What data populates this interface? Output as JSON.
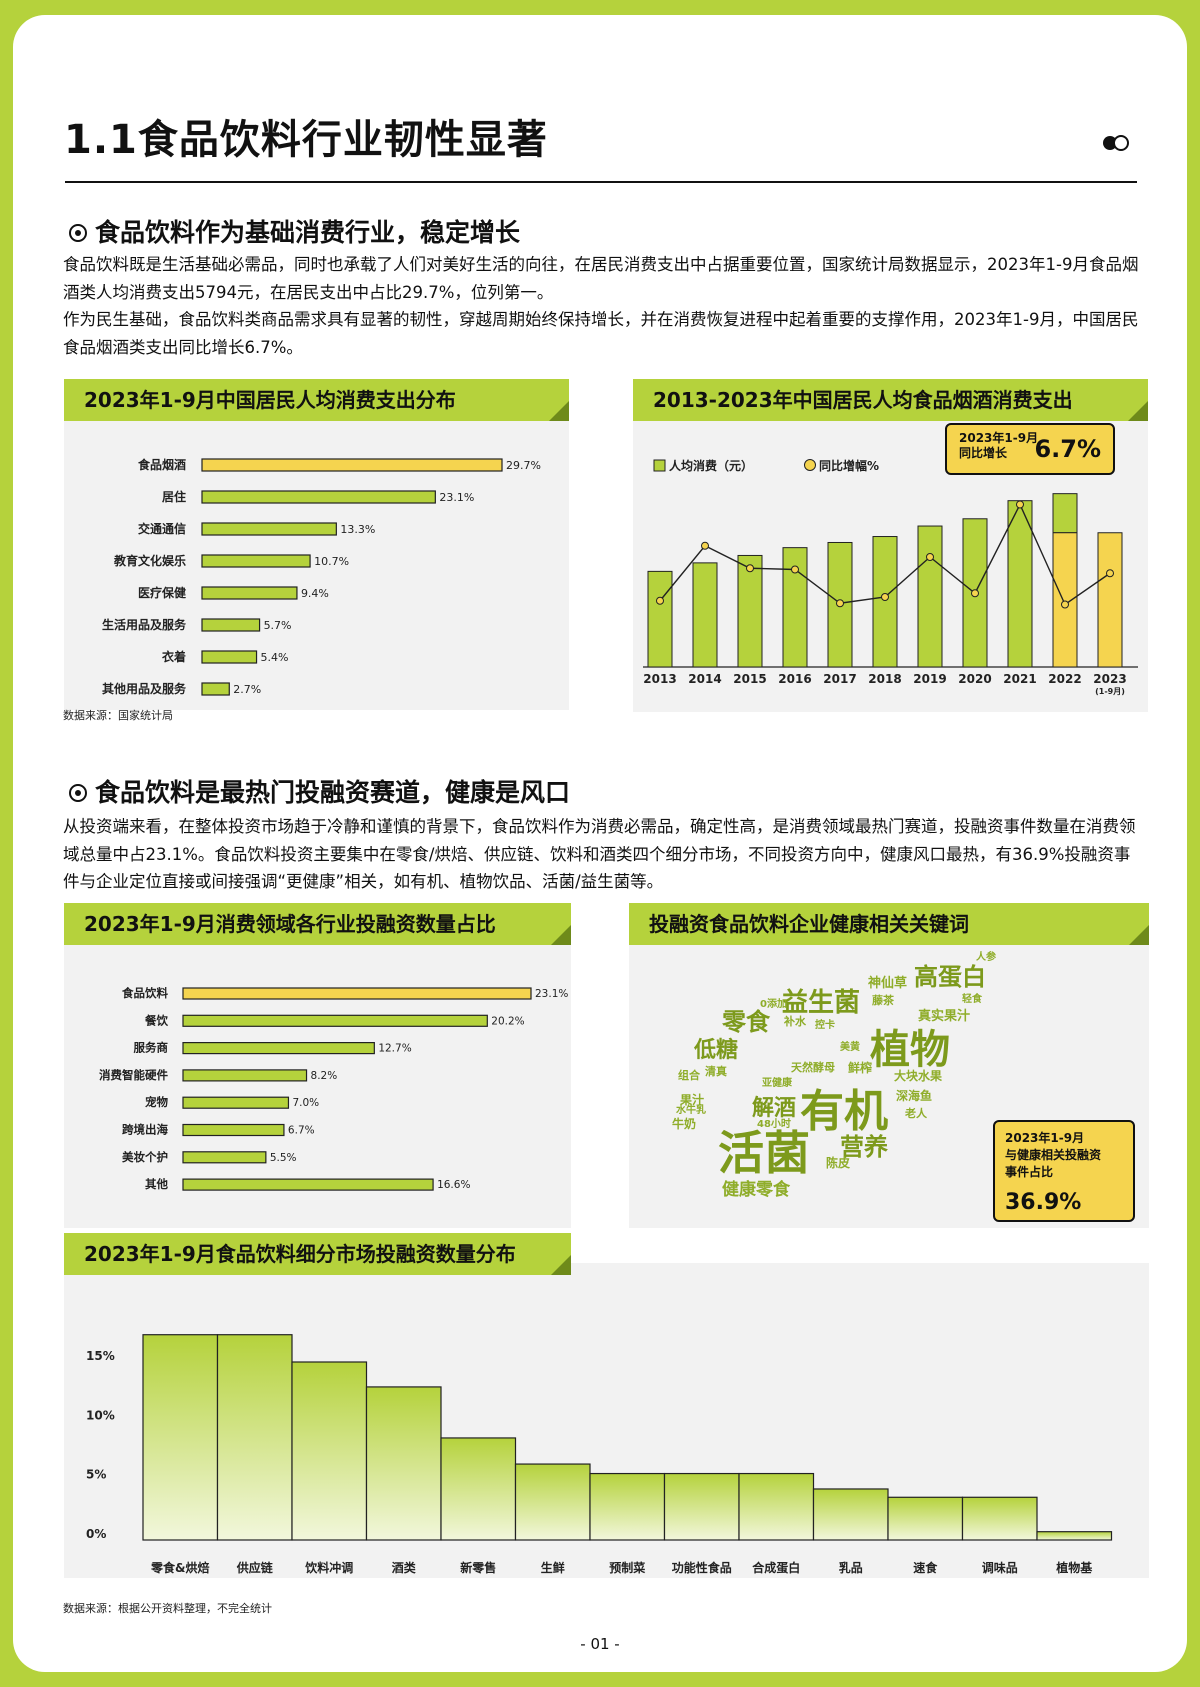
{
  "title": "1.1食品饮料行业韧性显著",
  "section1": {
    "heading": "食品饮料作为基础消费行业，稳定增长",
    "paragraph1": "食品饮料既是生活基础必需品，同时也承载了人们对美好生活的向往，在居民消费支出中占据重要位置，国家统计局数据显示，2023年1-9月食品烟酒类人均消费支出5794元，在居民支出中占比29.7%，位列第一。",
    "paragraph2": "作为民生基础，食品饮料类商品需求具有显著的韧性，穿越周期始终保持增长，并在消费恢复进程中起着重要的支撑作用，2023年1-9月，中国居民食品烟酒类支出同比增长6.7%。"
  },
  "source1": "数据来源：国家统计局",
  "section2": {
    "heading": "食品饮料是最热门投融资赛道，健康是风口",
    "paragraph": "从投资端来看，在整体投资市场趋于冷静和谨慎的背景下，食品饮料作为消费必需品，确定性高，是消费领域最热门赛道，投融资事件数量在消费领域总量中占23.1%。食品饮料投资主要集中在零食/烘焙、供应链、饮料和酒类四个细分市场，不同投资方向中，健康风口最热，有36.9%投融资事件与企业定位直接或间接强调“更健康”相关，如有机、植物饮品、活菌/益生菌等。"
  },
  "keywords": {
    "title": "投融资食品饮料企业健康相关关键词",
    "words": [
      "活菌",
      "有机",
      "植物",
      "益生菌",
      "零食",
      "低糖",
      "高蛋白",
      "营养",
      "解酒",
      "健康零食",
      "鲜榨",
      "天然酵母",
      "大块水果",
      "深海鱼",
      "真实果汁",
      "神仙草",
      "藤茶",
      "补水",
      "0添加",
      "果汁",
      "牛奶",
      "组合",
      "清真",
      "陈皮",
      "人参",
      "轻食",
      "老人",
      "美黄",
      "亚健康",
      "48小时",
      "水牛乳",
      "控卡"
    ],
    "callout": {
      "line1": "2023年1-9月",
      "line2": "与健康相关投融资",
      "line3": "事件占比",
      "value": "36.9%"
    }
  },
  "source2": "数据来源：根据公开资料整理，不完全统计",
  "page_number": "- 01 -",
  "colors": {
    "green": "#b5d23c",
    "yellow": "#f5d44f",
    "dark_green": "#7d9a1c"
  },
  "chart_data": [
    {
      "type": "bar",
      "orientation": "horizontal",
      "title": "2023年1-9月中国居民人均消费支出分布",
      "categories": [
        "食品烟酒",
        "居住",
        "交通通信",
        "教育文化娱乐",
        "医疗保健",
        "生活用品及服务",
        "衣着",
        "其他用品及服务"
      ],
      "values": [
        29.7,
        23.1,
        13.3,
        10.7,
        9.4,
        5.7,
        5.4,
        2.7
      ],
      "value_labels": [
        "29.7%",
        "23.1%",
        "13.3%",
        "10.7%",
        "9.4%",
        "5.7%",
        "5.4%",
        "2.7%"
      ],
      "highlight_index": 0
    },
    {
      "type": "bar",
      "title": "2013-2023年中国居民人均食品烟酒消费支出",
      "categories": [
        "2013",
        "2014",
        "2015",
        "2016",
        "2017",
        "2018",
        "2019",
        "2020",
        "2021",
        "2022",
        "2023"
      ],
      "category_note": "(1-9月)",
      "legend": [
        "人均消费（元）",
        "同比增幅%"
      ],
      "series": [
        {
          "name": "人均消费（元）",
          "values": [
            4127,
            4494,
            4814,
            5151,
            5374,
            5631,
            6084,
            6397,
            7178,
            7481,
            5794
          ]
        },
        {
          "name": "同比增幅%",
          "values": [
            4.5,
            8.9,
            7.1,
            7.0,
            4.3,
            4.8,
            8.0,
            5.1,
            12.2,
            4.2,
            6.7
          ]
        }
      ],
      "callout": {
        "line1": "2023年1-9月",
        "line2": "同比增长",
        "value": "6.7%"
      }
    },
    {
      "type": "bar",
      "orientation": "horizontal",
      "title": "2023年1-9月消费领域各行业投融资数量占比",
      "categories": [
        "食品饮料",
        "餐饮",
        "服务商",
        "消费智能硬件",
        "宠物",
        "跨境出海",
        "美妆个护",
        "其他"
      ],
      "values": [
        23.1,
        20.2,
        12.7,
        8.2,
        7.0,
        6.7,
        5.5,
        16.6
      ],
      "value_labels": [
        "23.1%",
        "20.2%",
        "12.7%",
        "8.2%",
        "7.0%",
        "6.7%",
        "5.5%",
        "16.6%"
      ],
      "highlight_index": 0
    },
    {
      "type": "bar",
      "title": "2023年1-9月食品饮料细分市场投融资数量分布",
      "categories": [
        "零食&烘焙",
        "供应链",
        "饮料冲调",
        "酒类",
        "新零售",
        "生鲜",
        "预制菜",
        "功能性食品",
        "合成蛋白",
        "乳品",
        "速食",
        "调味品",
        "植物基"
      ],
      "values": [
        17.3,
        17.3,
        15.0,
        12.9,
        8.6,
        6.4,
        5.6,
        5.6,
        5.6,
        4.3,
        3.6,
        3.6,
        0.7
      ],
      "y_ticks": [
        "0%",
        "5%",
        "10%",
        "15%"
      ],
      "ylim": [
        0,
        17.3
      ]
    }
  ]
}
